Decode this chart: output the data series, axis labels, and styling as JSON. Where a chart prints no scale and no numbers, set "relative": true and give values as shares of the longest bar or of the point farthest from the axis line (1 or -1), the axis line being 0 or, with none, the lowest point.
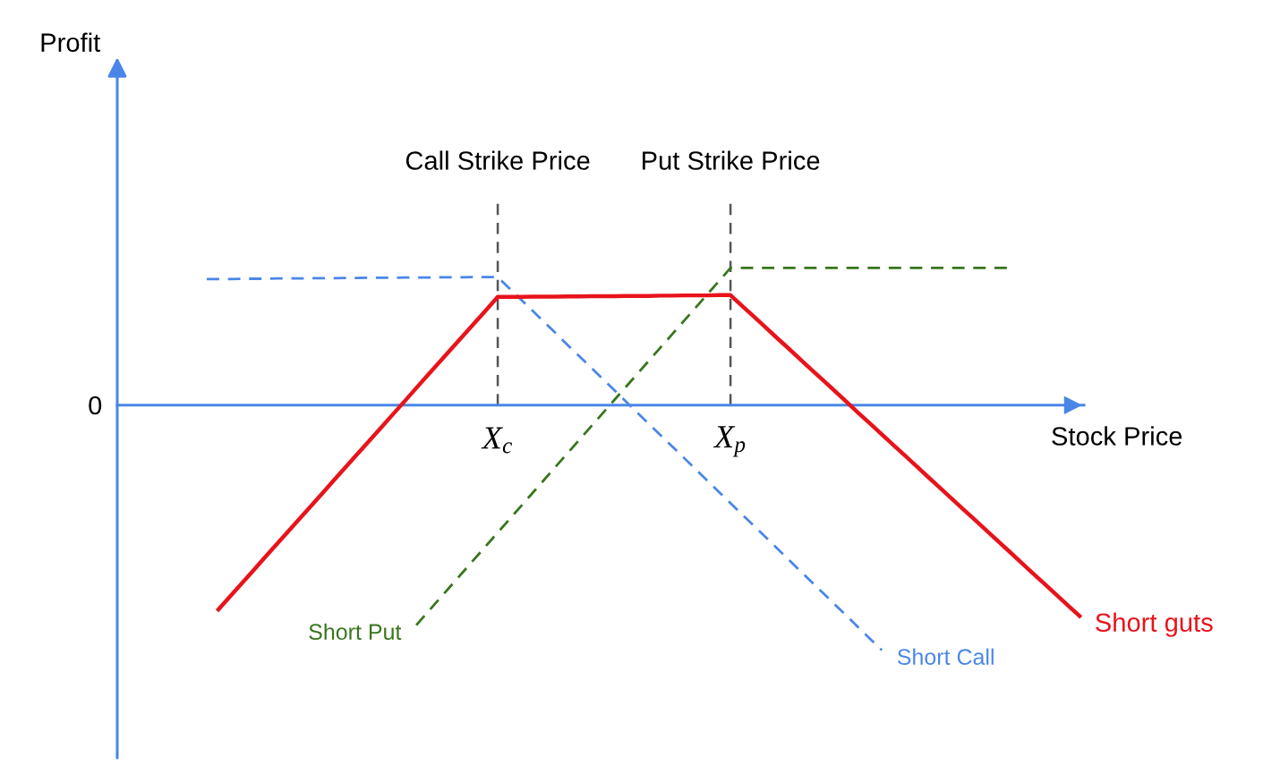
{
  "chart_data": {
    "type": "line",
    "xlabel": "Stock Price",
    "relative": true,
    "categories": [
      null,
      null,
      null,
      null,
      null,
      null,
      null,
      null,
      null,
      null,
      null,
      null,
      null,
      null,
      null,
      null,
      null,
      null,
      null,
      null,
      null,
      null,
      null,
      null,
      null,
      "X$_{c}$",
      null,
      null,
      null,
      null,
      null,
      null,
      null,
      null,
      null,
      null,
      null,
      null,
      null,
      null,
      null,
      null,
      null,
      null,
      null,
      "X$_{p}$",
      null,
      null,
      null,
      null,
      null,
      null,
      null,
      null,
      null,
      null,
      null,
      null,
      null,
      null,
      null,
      null,
      null,
      null,
      null,
      null,
      null,
      null,
      null,
      null,
      null,
      null,
      null,
      null,
      null,
      null
    ],
    "series": [
      {
        "name": "Short guts",
        "color": "#e8131b",
        "line_style": "solid",
        "values": [
          null,
          -0.834,
          -0.781,
          -0.728,
          -0.675,
          -0.621,
          -0.568,
          -0.515,
          -0.462,
          -0.409,
          -0.356,
          -0.302,
          -0.249,
          -0.196,
          -0.143,
          -0.09,
          -0.037,
          0.016,
          0.07,
          0.123,
          0.176,
          0.229,
          0.282,
          0.335,
          0.388,
          0.442,
          0.442,
          0.442,
          0.443,
          0.443,
          0.443,
          0.444,
          0.444,
          0.445,
          0.445,
          0.445,
          0.446,
          0.446,
          0.446,
          0.447,
          0.447,
          0.448,
          0.448,
          0.448,
          0.449,
          0.449,
          0.405,
          0.362,
          0.318,
          0.274,
          0.231,
          0.187,
          0.143,
          0.1,
          0.056,
          0.012,
          -0.032,
          -0.075,
          -0.119,
          -0.163,
          -0.206,
          -0.25,
          -0.294,
          -0.337,
          -0.381,
          -0.425,
          -0.468,
          -0.512,
          -0.556,
          -0.599,
          -0.643,
          -0.687,
          -0.73,
          -0.774,
          -0.818,
          -0.861
        ]
      },
      {
        "name": "Short Call",
        "color": "#4a86e8",
        "line_style": "dashed",
        "values": [
          0.515,
          0.515,
          0.515,
          0.516,
          0.516,
          0.516,
          0.517,
          0.517,
          0.517,
          0.518,
          0.518,
          0.518,
          0.519,
          0.519,
          0.52,
          0.52,
          0.52,
          0.521,
          0.521,
          0.521,
          0.522,
          0.522,
          0.522,
          0.523,
          0.523,
          0.523,
          0.477,
          0.431,
          0.385,
          0.339,
          0.293,
          0.246,
          0.2,
          0.154,
          0.108,
          0.062,
          0.016,
          -0.031,
          -0.077,
          -0.123,
          -0.169,
          -0.215,
          -0.261,
          -0.308,
          -0.354,
          -0.4,
          -0.446,
          -0.492,
          -0.538,
          -0.584,
          -0.631,
          -0.677,
          -0.723,
          -0.769,
          -0.815,
          -0.861,
          -0.908,
          -0.954,
          -1,
          null,
          null,
          null,
          null,
          null,
          null,
          null,
          null,
          null,
          null,
          null,
          null,
          null,
          null,
          null,
          null,
          null
        ]
      },
      {
        "name": "Short Put",
        "color": "#38761d",
        "line_style": "dashed",
        "values": [
          null,
          null,
          null,
          null,
          null,
          null,
          null,
          null,
          null,
          null,
          null,
          null,
          null,
          null,
          null,
          null,
          null,
          null,
          -0.898,
          -0.844,
          -0.79,
          -0.736,
          -0.682,
          -0.628,
          -0.574,
          -0.52,
          -0.466,
          -0.412,
          -0.358,
          -0.304,
          -0.25,
          -0.196,
          -0.142,
          -0.088,
          -0.034,
          0.02,
          0.074,
          0.128,
          0.182,
          0.236,
          0.29,
          0.344,
          0.398,
          0.452,
          0.506,
          0.56,
          0.56,
          0.56,
          0.56,
          0.56,
          0.56,
          0.56,
          0.56,
          0.56,
          0.56,
          0.56,
          0.56,
          0.56,
          0.56,
          0.56,
          0.56,
          0.56,
          0.56,
          0.56,
          0.56,
          0.56,
          0.56,
          0.56,
          0.56,
          0.56,
          null,
          null,
          null,
          null,
          null,
          null
        ]
      }
    ],
    "ref_lines": [
      {
        "axis": "x",
        "value": "X$_{c}$",
        "label": "Call Strike Price",
        "color": "#555555",
        "line_style": "dashed"
      },
      {
        "axis": "x",
        "value": "X$_{p}$",
        "label": "Put Strike Price",
        "color": "#555555",
        "line_style": "dashed"
      }
    ],
    "annotations": [
      "Profit",
      "0"
    ]
  }
}
